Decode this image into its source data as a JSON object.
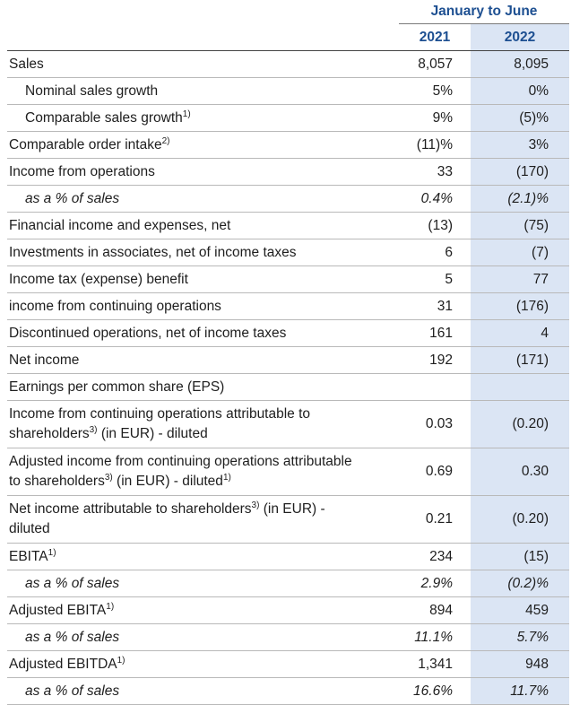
{
  "header": {
    "period": "January to June",
    "years": [
      "2021",
      "2022"
    ]
  },
  "rows": [
    {
      "label": [
        "Sales"
      ],
      "values": [
        "8,057",
        "8,095"
      ]
    },
    {
      "label": [
        "Nominal sales growth"
      ],
      "values": [
        "5%",
        "0%"
      ]
    },
    {
      "label": [
        "Comparable sales growth",
        "1)"
      ],
      "values": [
        "9%",
        "(5)%"
      ]
    },
    {
      "label": [
        "Comparable order intake",
        "2)"
      ],
      "values": [
        "(11)%",
        "3%"
      ]
    },
    {
      "label": [
        "Income from operations"
      ],
      "values": [
        "33",
        "(170)"
      ]
    },
    {
      "label": [
        "as a % of sales"
      ],
      "values": [
        "0.4%",
        "(2.1)%"
      ]
    },
    {
      "label": [
        "Financial income and expenses, net"
      ],
      "values": [
        "(13)",
        "(75)"
      ]
    },
    {
      "label": [
        "Investments in associates, net of income taxes"
      ],
      "values": [
        "6",
        "(7)"
      ]
    },
    {
      "label": [
        "Income tax (expense) benefit"
      ],
      "values": [
        "5",
        "77"
      ]
    },
    {
      "label": [
        "income from continuing operations"
      ],
      "values": [
        "31",
        "(176)"
      ]
    },
    {
      "label": [
        "Discontinued operations, net of income taxes"
      ],
      "values": [
        "161",
        "4"
      ]
    },
    {
      "label": [
        "Net income"
      ],
      "values": [
        "192",
        "(171)"
      ]
    },
    {
      "label": [
        "Earnings per common share (EPS)"
      ],
      "values": []
    },
    {
      "label": [
        "Income from continuing operations attributable to shareholders",
        "3)",
        " (in EUR) - diluted"
      ],
      "values": [
        "0.03",
        "(0.20)"
      ]
    },
    {
      "label": [
        "Adjusted income from continuing operations attributable to shareholders",
        "3)",
        " (in EUR) - diluted",
        "1)"
      ],
      "values": [
        "0.69",
        "0.30"
      ]
    },
    {
      "label": [
        "Net income attributable to shareholders",
        "3)",
        " (in EUR) - diluted"
      ],
      "values": [
        "0.21",
        "(0.20)"
      ]
    },
    {
      "label": [
        "EBITA",
        "1)"
      ],
      "values": [
        "234",
        "(15)"
      ]
    },
    {
      "label": [
        "as a % of sales"
      ],
      "values": [
        "2.9%",
        "(0.2)%"
      ]
    },
    {
      "label": [
        "Adjusted EBITA",
        "1)"
      ],
      "values": [
        "894",
        "459"
      ]
    },
    {
      "label": [
        "as a % of sales"
      ],
      "values": [
        "11.1%",
        "5.7%"
      ]
    },
    {
      "label": [
        "Adjusted EBITDA",
        "1)"
      ],
      "values": [
        "1,341",
        "948"
      ]
    },
    {
      "label": [
        "as a % of sales"
      ],
      "values": [
        "16.6%",
        "11.7%"
      ]
    }
  ]
}
